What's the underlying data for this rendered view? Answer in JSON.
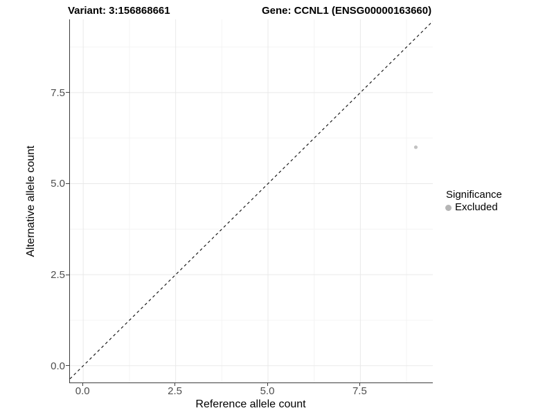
{
  "chart_data": {
    "type": "scatter",
    "title_left": "Variant: 3:156868661",
    "title_right": "Gene: CCNL1 (ENSG00000163660)",
    "xlabel": "Reference allele count",
    "ylabel": "Alternative allele count",
    "xlim": [
      -0.36,
      9.46
    ],
    "ylim": [
      -0.46,
      9.51
    ],
    "xticks": [
      0,
      2.5,
      5,
      7.5
    ],
    "xtick_labels": [
      "0.0",
      "2.5",
      "5.0",
      "7.5"
    ],
    "yticks": [
      0,
      2.5,
      5,
      7.5
    ],
    "ytick_labels": [
      "0.0",
      "2.5",
      "5.0",
      "7.5"
    ],
    "xticks_minor": [
      1.25,
      3.75,
      6.25,
      8.75
    ],
    "yticks_minor": [
      1.25,
      3.75,
      6.25,
      8.75
    ],
    "grid": true,
    "series": [
      {
        "name": "Excluded",
        "color": "#c2c2c2",
        "points": [
          {
            "x": 9,
            "y": 6
          }
        ]
      }
    ],
    "reference_line": {
      "type": "identity",
      "slope": 1,
      "intercept": 0,
      "style": "dashed",
      "color": "#1a1a1a"
    },
    "legend": {
      "title": "Significance",
      "position": "right",
      "entries": [
        {
          "label": "Excluded",
          "color": "#b5b5b5"
        }
      ]
    },
    "colors": {
      "background": "#ffffff",
      "axis_line": "#3c3c3c",
      "tick_mark": "#3c3c3c",
      "tick_label": "#4d4d4d",
      "grid_major": "#e9e9e9",
      "grid_minor": "#f4f4f4",
      "title": "#000000"
    }
  }
}
